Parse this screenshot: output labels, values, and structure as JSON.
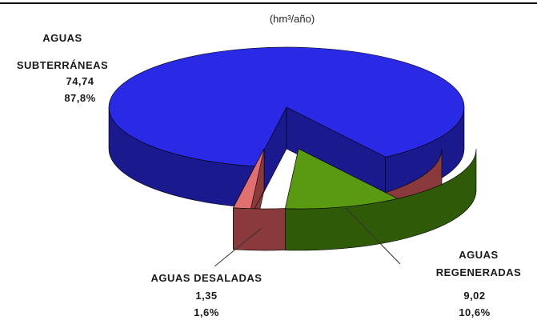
{
  "chart_data": {
    "type": "pie",
    "subtitle": "(hm³/año)",
    "slices": [
      {
        "label_lines": [
          "AGUAS",
          "SUBTERRÁNEAS"
        ],
        "value": 74.74,
        "value_text": "74,74",
        "percent": 87.8,
        "percent_text": "87,8%",
        "color": "#2a2ae6",
        "side_color": "#1a1a8e"
      },
      {
        "label_lines": [
          "AGUAS",
          "REGENERADAS"
        ],
        "value": 9.02,
        "value_text": "9,02",
        "percent": 10.6,
        "percent_text": "10,6%",
        "color": "#5a9a10",
        "side_color": "#2f5a08"
      },
      {
        "label_lines": [
          "AGUAS DESALADAS"
        ],
        "value": 1.35,
        "value_text": "1,35",
        "percent": 1.6,
        "percent_text": "1,6%",
        "color": "#e07070",
        "side_color": "#8a3a3a"
      }
    ]
  }
}
